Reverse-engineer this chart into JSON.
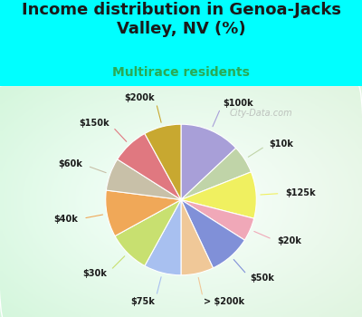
{
  "title": "Income distribution in Genoa-Jacks\nValley, NV (%)",
  "subtitle": "Multirace residents",
  "labels": [
    "$100k",
    "$10k",
    "$125k",
    "$20k",
    "$50k",
    "> $200k",
    "$75k",
    "$30k",
    "$40k",
    "$60k",
    "$150k",
    "$200k"
  ],
  "values": [
    13,
    6,
    10,
    5,
    9,
    7,
    8,
    9,
    10,
    7,
    8,
    8
  ],
  "colors": [
    "#a89fd8",
    "#c0d4a8",
    "#f0f060",
    "#f0a8b8",
    "#8090d8",
    "#f0c898",
    "#a8c0f0",
    "#c8e070",
    "#f0a858",
    "#c8c0a8",
    "#e07880",
    "#c8a830"
  ],
  "bg_color": "#00ffff",
  "chart_bg_left": "#b8e8c8",
  "chart_bg_right": "#e8f8f0",
  "title_color": "#1a1a1a",
  "subtitle_color": "#2aaa55",
  "watermark": "City-Data.com",
  "title_fontsize": 13,
  "subtitle_fontsize": 10,
  "label_fontsize": 7
}
